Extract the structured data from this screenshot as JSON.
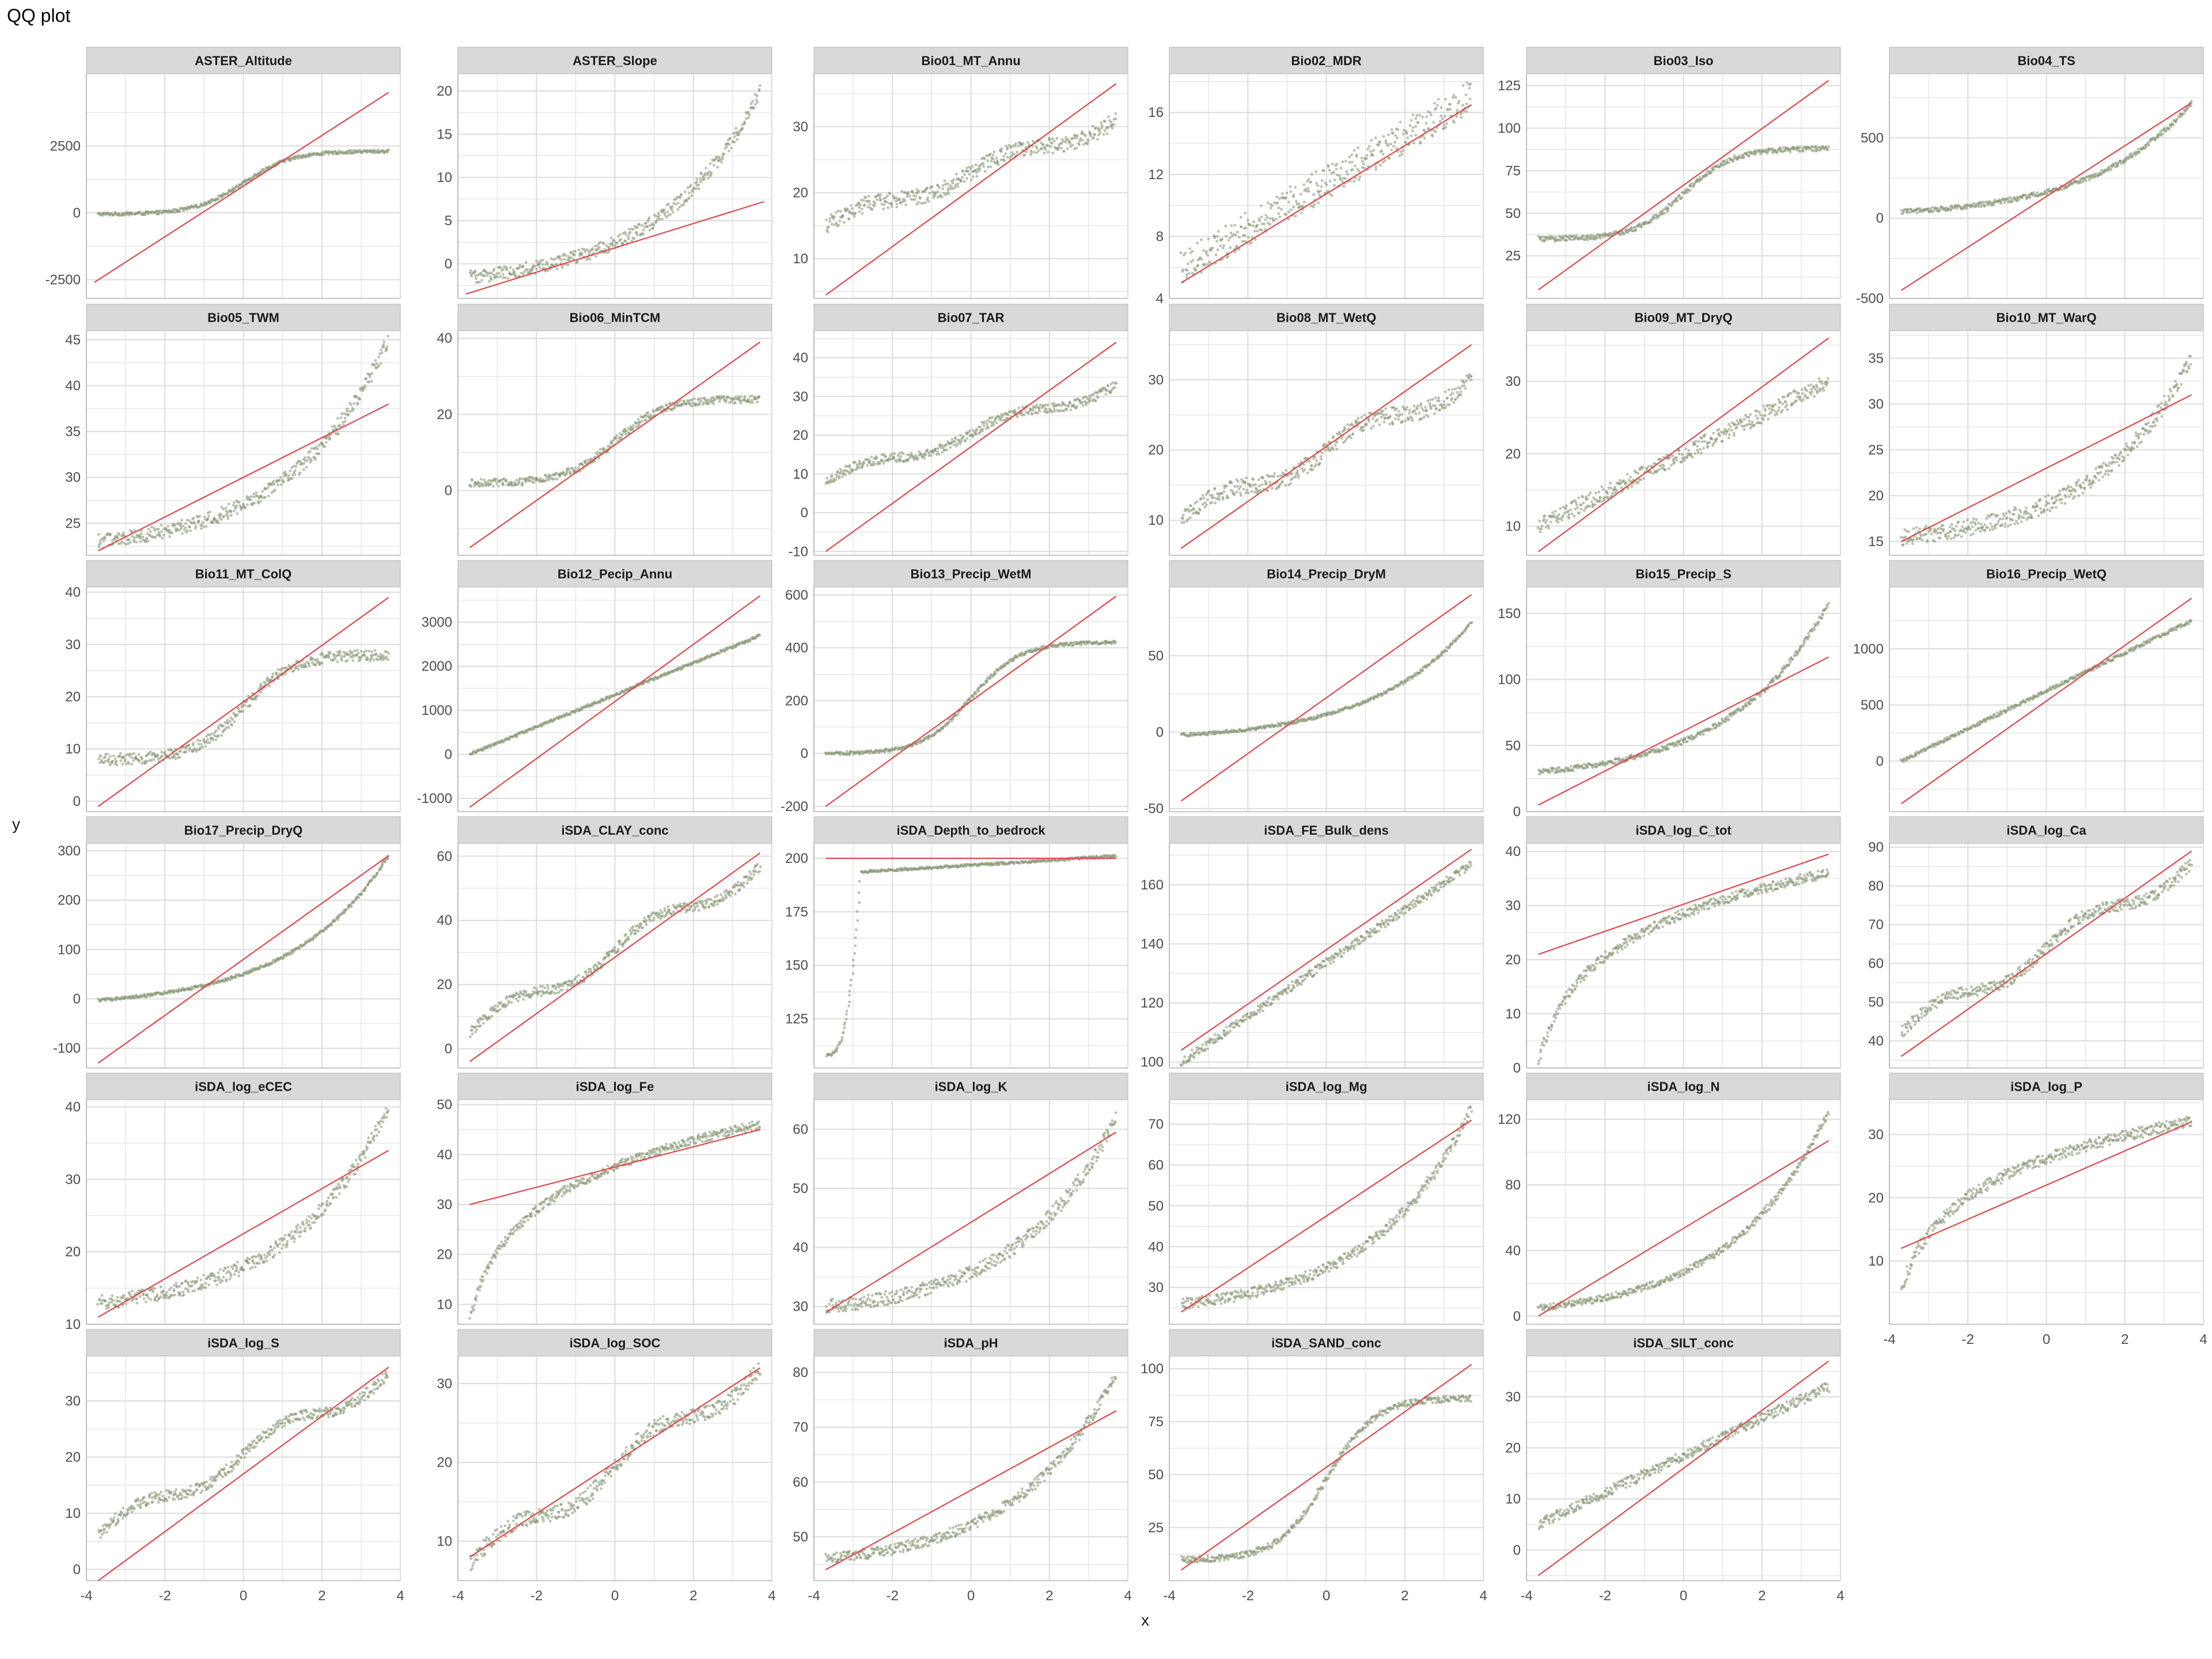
{
  "chart_data": {
    "type": "scatter",
    "title": "QQ plot",
    "xlabel": "x",
    "ylabel": "y",
    "grid": true,
    "colors": {
      "points": "#8a9a78",
      "line": "#e0474c",
      "strip": "#d9d9d9",
      "grid": "#dcdcdc"
    },
    "x_range": [
      -4,
      4
    ],
    "x_ticks": [
      "-4",
      "-2",
      "0",
      "2",
      "4"
    ],
    "panels": [
      {
        "name": "ASTER_Altitude",
        "ylim": [
          -3200,
          5200
        ],
        "yticks": [
          "-2500",
          "0",
          "2500"
        ],
        "line": [
          [
            -3.8,
            -2600
          ],
          [
            3.7,
            4500
          ]
        ],
        "shape": "tanh",
        "qmin": -50,
        "qmax": 2300,
        "spread": 60
      },
      {
        "name": "ASTER_Slope",
        "ylim": [
          -4,
          22
        ],
        "yticks": [
          "0",
          "5",
          "10",
          "15",
          "20"
        ],
        "line": [
          [
            -3.8,
            -3.5
          ],
          [
            3.8,
            7.2
          ]
        ],
        "shape": "exp",
        "qmin": -1.5,
        "qmax": 20,
        "spread": 0.8
      },
      {
        "name": "Bio01_MT_Annu",
        "ylim": [
          4,
          38
        ],
        "yticks": [
          "10",
          "20",
          "30"
        ],
        "line": [
          [
            -3.7,
            4.5
          ],
          [
            3.7,
            36.5
          ]
        ],
        "shape": "s",
        "qmin": 15,
        "qmax": 31,
        "spread": 1.2
      },
      {
        "name": "Bio02_MDR",
        "ylim": [
          4,
          18.5
        ],
        "yticks": [
          "4",
          "8",
          "12",
          "16"
        ],
        "line": [
          [
            -3.7,
            5
          ],
          [
            3.7,
            16.5
          ]
        ],
        "shape": "lin",
        "qmin": 6,
        "qmax": 17,
        "spread": 1.1
      },
      {
        "name": "Bio03_Iso",
        "ylim": [
          0,
          132
        ],
        "yticks": [
          "25",
          "50",
          "75",
          "100",
          "125"
        ],
        "line": [
          [
            -3.7,
            5
          ],
          [
            3.7,
            128
          ]
        ],
        "shape": "tanh",
        "qmin": 35,
        "qmax": 88,
        "spread": 1.5
      },
      {
        "name": "Bio04_TS",
        "ylim": [
          -500,
          900
        ],
        "yticks": [
          "-500",
          "0",
          "500"
        ],
        "line": [
          [
            -3.7,
            -450
          ],
          [
            3.7,
            720
          ]
        ],
        "shape": "exp",
        "qmin": 40,
        "qmax": 720,
        "spread": 15
      },
      {
        "name": "Bio05_TWM",
        "ylim": [
          21.5,
          46
        ],
        "yticks": [
          "25",
          "30",
          "35",
          "40",
          "45"
        ],
        "line": [
          [
            -3.7,
            22
          ],
          [
            3.7,
            38
          ]
        ],
        "shape": "exp",
        "qmin": 23,
        "qmax": 45,
        "spread": 0.8
      },
      {
        "name": "Bio06_MinTCM",
        "ylim": [
          -17,
          42
        ],
        "yticks": [
          "0",
          "20",
          "40"
        ],
        "line": [
          [
            -3.7,
            -15
          ],
          [
            3.7,
            39
          ]
        ],
        "shape": "tanh",
        "qmin": 2,
        "qmax": 24,
        "spread": 1
      },
      {
        "name": "Bio07_TAR",
        "ylim": [
          -11,
          47
        ],
        "yticks": [
          "-10",
          "0",
          "10",
          "20",
          "30",
          "40"
        ],
        "line": [
          [
            -3.7,
            -10
          ],
          [
            3.7,
            44
          ]
        ],
        "shape": "s",
        "qmin": 8,
        "qmax": 33,
        "spread": 1.2
      },
      {
        "name": "Bio08_MT_WetQ",
        "ylim": [
          5,
          37
        ],
        "yticks": [
          "10",
          "20",
          "30"
        ],
        "line": [
          [
            -3.7,
            6
          ],
          [
            3.7,
            35
          ]
        ],
        "shape": "s",
        "qmin": 10,
        "qmax": 30,
        "spread": 1.2
      },
      {
        "name": "Bio09_MT_DryQ",
        "ylim": [
          6,
          37
        ],
        "yticks": [
          "10",
          "20",
          "30"
        ],
        "line": [
          [
            -3.7,
            6.5
          ],
          [
            3.7,
            36
          ]
        ],
        "shape": "lin",
        "qmin": 10,
        "qmax": 30,
        "spread": 1.1
      },
      {
        "name": "Bio10_MT_WarQ",
        "ylim": [
          13.5,
          38
        ],
        "yticks": [
          "15",
          "20",
          "25",
          "30",
          "35"
        ],
        "line": [
          [
            -3.7,
            15
          ],
          [
            3.7,
            31
          ]
        ],
        "shape": "exp",
        "qmin": 15.5,
        "qmax": 35,
        "spread": 0.9
      },
      {
        "name": "Bio11_MT_ColQ",
        "ylim": [
          -2,
          41
        ],
        "yticks": [
          "0",
          "10",
          "20",
          "30",
          "40"
        ],
        "line": [
          [
            -3.7,
            -1
          ],
          [
            3.7,
            39
          ]
        ],
        "shape": "tanh",
        "qmin": 8,
        "qmax": 28,
        "spread": 1.1
      },
      {
        "name": "Bio12_Pecip_Annu",
        "ylim": [
          -1300,
          3800
        ],
        "yticks": [
          "-1000",
          "0",
          "1000",
          "2000",
          "3000"
        ],
        "line": [
          [
            -3.7,
            -1200
          ],
          [
            3.7,
            3600
          ]
        ],
        "shape": "lin",
        "qmin": 0,
        "qmax": 2700,
        "spread": 30
      },
      {
        "name": "Bio13_Precip_WetM",
        "ylim": [
          -220,
          630
        ],
        "yticks": [
          "-200",
          "0",
          "200",
          "400",
          "600"
        ],
        "line": [
          [
            -3.7,
            -200
          ],
          [
            3.7,
            595
          ]
        ],
        "shape": "tanh",
        "qmin": 0,
        "qmax": 420,
        "spread": 6
      },
      {
        "name": "Bio14_Precip_DryM",
        "ylim": [
          -52,
          95
        ],
        "yticks": [
          "-50",
          "0",
          "50"
        ],
        "line": [
          [
            -3.7,
            -45
          ],
          [
            3.7,
            90
          ]
        ],
        "shape": "exp",
        "qmin": -2,
        "qmax": 72,
        "spread": 1
      },
      {
        "name": "Bio15_Precip_S",
        "ylim": [
          0,
          170
        ],
        "yticks": [
          "0",
          "50",
          "100",
          "150"
        ],
        "line": [
          [
            -3.7,
            5
          ],
          [
            3.7,
            117
          ]
        ],
        "shape": "exp",
        "qmin": 30,
        "qmax": 158,
        "spread": 2
      },
      {
        "name": "Bio16_Precip_WetQ",
        "ylim": [
          -450,
          1550
        ],
        "yticks": [
          "0",
          "500",
          "1000"
        ],
        "line": [
          [
            -3.7,
            -380
          ],
          [
            3.7,
            1450
          ]
        ],
        "shape": "lin",
        "qmin": 0,
        "qmax": 1250,
        "spread": 15
      },
      {
        "name": "Bio17_Precip_DryQ",
        "ylim": [
          -140,
          315
        ],
        "yticks": [
          "-100",
          "0",
          "100",
          "200",
          "300"
        ],
        "line": [
          [
            -3.7,
            -130
          ],
          [
            3.7,
            290
          ]
        ],
        "shape": "exp",
        "qmin": -3,
        "qmax": 290,
        "spread": 3
      },
      {
        "name": "iSDA_CLAY_conc",
        "ylim": [
          -6,
          64
        ],
        "yticks": [
          "0",
          "20",
          "40",
          "60"
        ],
        "line": [
          [
            -3.7,
            -4
          ],
          [
            3.7,
            61
          ]
        ],
        "shape": "s",
        "qmin": 5,
        "qmax": 57,
        "spread": 1.5
      },
      {
        "name": "iSDA_Depth_to_bedrock",
        "ylim": [
          102,
          207
        ],
        "yticks": [
          "125",
          "150",
          "175",
          "200"
        ],
        "line": [
          [
            -3.7,
            200
          ],
          [
            3.7,
            200
          ]
        ],
        "shape": "sat",
        "qmin": 108,
        "qmax": 201,
        "spread": 0.6
      },
      {
        "name": "iSDA_FE_Bulk_dens",
        "ylim": [
          98,
          174
        ],
        "yticks": [
          "100",
          "120",
          "140",
          "160"
        ],
        "line": [
          [
            -3.7,
            104
          ],
          [
            3.7,
            172
          ]
        ],
        "shape": "lin",
        "qmin": 100,
        "qmax": 167,
        "spread": 1.5
      },
      {
        "name": "iSDA_log_C_tot",
        "ylim": [
          0,
          41.5
        ],
        "yticks": [
          "0",
          "10",
          "20",
          "30",
          "40"
        ],
        "line": [
          [
            -3.7,
            21
          ],
          [
            3.7,
            39.5
          ]
        ],
        "shape": "log",
        "qmin": 1,
        "qmax": 36,
        "spread": 0.9
      },
      {
        "name": "iSDA_log_Ca",
        "ylim": [
          33,
          91
        ],
        "yticks": [
          "40",
          "50",
          "60",
          "70",
          "80",
          "90"
        ],
        "line": [
          [
            -3.7,
            36
          ],
          [
            3.7,
            89
          ]
        ],
        "shape": "s",
        "qmin": 42,
        "qmax": 86,
        "spread": 1.5
      },
      {
        "name": "iSDA_log_eCEC",
        "ylim": [
          10,
          41
        ],
        "yticks": [
          "10",
          "20",
          "30",
          "40"
        ],
        "line": [
          [
            -3.7,
            11
          ],
          [
            3.7,
            34
          ]
        ],
        "shape": "exp",
        "qmin": 13,
        "qmax": 40,
        "spread": 1
      },
      {
        "name": "iSDA_log_Fe",
        "ylim": [
          6,
          51
        ],
        "yticks": [
          "10",
          "20",
          "30",
          "40",
          "50"
        ],
        "line": [
          [
            -3.7,
            30
          ],
          [
            3.7,
            45
          ]
        ],
        "shape": "log",
        "qmin": 7,
        "qmax": 46,
        "spread": 0.9
      },
      {
        "name": "iSDA_log_K",
        "ylim": [
          27,
          65
        ],
        "yticks": [
          "30",
          "40",
          "50",
          "60"
        ],
        "line": [
          [
            -3.7,
            29
          ],
          [
            3.7,
            59.5
          ]
        ],
        "shape": "exp",
        "qmin": 30,
        "qmax": 62,
        "spread": 1.2
      },
      {
        "name": "iSDA_log_Mg",
        "ylim": [
          21,
          76
        ],
        "yticks": [
          "30",
          "40",
          "50",
          "60",
          "70"
        ],
        "line": [
          [
            -3.7,
            24
          ],
          [
            3.7,
            71
          ]
        ],
        "shape": "exp",
        "qmin": 26,
        "qmax": 74,
        "spread": 1.3
      },
      {
        "name": "iSDA_log_N",
        "ylim": [
          -5,
          132
        ],
        "yticks": [
          "0",
          "40",
          "80",
          "120"
        ],
        "line": [
          [
            -3.7,
            0
          ],
          [
            3.7,
            107
          ]
        ],
        "shape": "exp",
        "qmin": 5,
        "qmax": 125,
        "spread": 2
      },
      {
        "name": "iSDA_log_P",
        "ylim": [
          0,
          35.5
        ],
        "yticks": [
          "10",
          "20",
          "30"
        ],
        "line": [
          [
            -3.7,
            12
          ],
          [
            3.7,
            32
          ]
        ],
        "shape": "log",
        "qmin": 5,
        "qmax": 32,
        "spread": 0.9
      },
      {
        "name": "iSDA_log_S",
        "ylim": [
          -2,
          38
        ],
        "yticks": [
          "0",
          "10",
          "20",
          "30"
        ],
        "line": [
          [
            -3.7,
            -2
          ],
          [
            3.7,
            36
          ]
        ],
        "shape": "s",
        "qmin": 6,
        "qmax": 35,
        "spread": 1
      },
      {
        "name": "iSDA_log_SOC",
        "ylim": [
          5,
          33.5
        ],
        "yticks": [
          "10",
          "20",
          "30"
        ],
        "line": [
          [
            -3.7,
            8
          ],
          [
            3.7,
            32
          ]
        ],
        "shape": "s",
        "qmin": 7,
        "qmax": 32,
        "spread": 1
      },
      {
        "name": "iSDA_pH",
        "ylim": [
          42,
          83
        ],
        "yticks": [
          "50",
          "60",
          "70",
          "80"
        ],
        "line": [
          [
            -3.7,
            44
          ],
          [
            3.7,
            73
          ]
        ],
        "shape": "exp",
        "qmin": 46,
        "qmax": 80,
        "spread": 1
      },
      {
        "name": "iSDA_SAND_conc",
        "ylim": [
          0,
          106
        ],
        "yticks": [
          "25",
          "50",
          "75",
          "100"
        ],
        "line": [
          [
            -3.7,
            5
          ],
          [
            3.7,
            102
          ]
        ],
        "shape": "tanh",
        "qmin": 10,
        "qmax": 86,
        "spread": 1.5
      },
      {
        "name": "iSDA_SILT_conc",
        "ylim": [
          -6,
          38
        ],
        "yticks": [
          "0",
          "10",
          "20",
          "30"
        ],
        "line": [
          [
            -3.7,
            -5
          ],
          [
            3.7,
            37
          ]
        ],
        "shape": "lin",
        "qmin": 5,
        "qmax": 32,
        "spread": 1
      }
    ]
  }
}
